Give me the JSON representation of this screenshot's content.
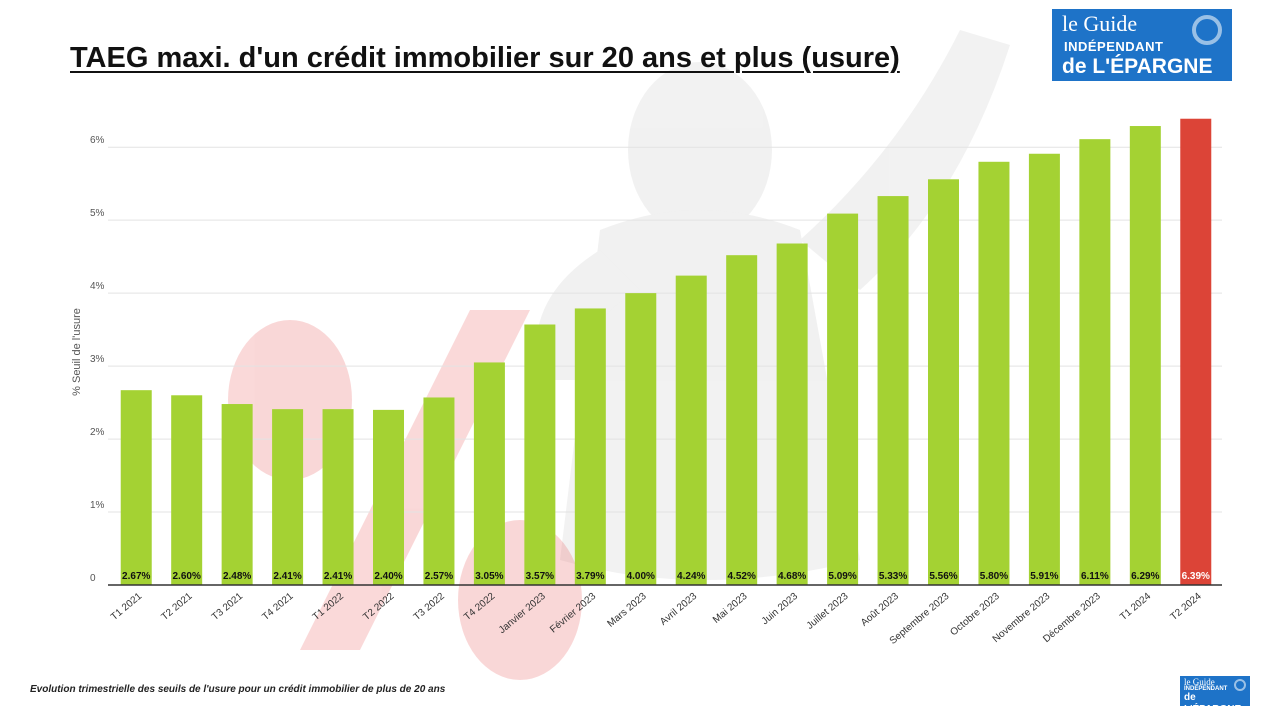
{
  "chart_data": {
    "type": "bar",
    "title": "TAEG maxi. d'un crédit immobilier sur 20 ans et plus (usure)",
    "ylabel": "% Seuil de l'usure",
    "xlabel": "",
    "ylim": [
      0,
      6.4
    ],
    "yticks": [
      "0",
      "1%",
      "2%",
      "3%",
      "4%",
      "5%",
      "6%"
    ],
    "grid": true,
    "categories": [
      "T1 2021",
      "T2 2021",
      "T3 2021",
      "T4 2021",
      "T1 2022",
      "T2 2022",
      "T3 2022",
      "T4 2022",
      "Janvier 2023",
      "Février 2023",
      "Mars 2023",
      "Avril 2023",
      "Mai 2023",
      "Juin 2023",
      "Juillet 2023",
      "Août 2023",
      "Septembre 2023",
      "Octobre 2023",
      "Novembre 2023",
      "Décembre 2023",
      "T1 2024",
      "T2 2024"
    ],
    "values": [
      2.67,
      2.6,
      2.48,
      2.41,
      2.41,
      2.4,
      2.57,
      3.05,
      3.57,
      3.79,
      4.0,
      4.24,
      4.52,
      4.68,
      5.09,
      5.33,
      5.56,
      5.8,
      5.91,
      6.11,
      6.29,
      6.39
    ],
    "data_labels": [
      "2.67%",
      "2.60%",
      "2.48%",
      "2.41%",
      "2.41%",
      "2.40%",
      "2.57%",
      "3.05%",
      "3.57%",
      "3.79%",
      "4.00%",
      "4.24%",
      "4.52%",
      "4.68%",
      "5.09%",
      "5.33%",
      "5.56%",
      "5.80%",
      "5.91%",
      "6.11%",
      "6.29%",
      "6.39%"
    ],
    "colors": {
      "bar": "#a4d233",
      "highlight": "#dc4437",
      "highlight_index": 21,
      "label_text": "#111111",
      "highlight_label_text": "#ffffff"
    }
  },
  "caption": "Evolution trimestrielle des seuils de l'usure pour un crédit immobilier de plus de 20 ans",
  "logo": {
    "line1": "le Guide",
    "line2": "INDÉPENDANT",
    "line3": "de L'ÉPARGNE"
  }
}
